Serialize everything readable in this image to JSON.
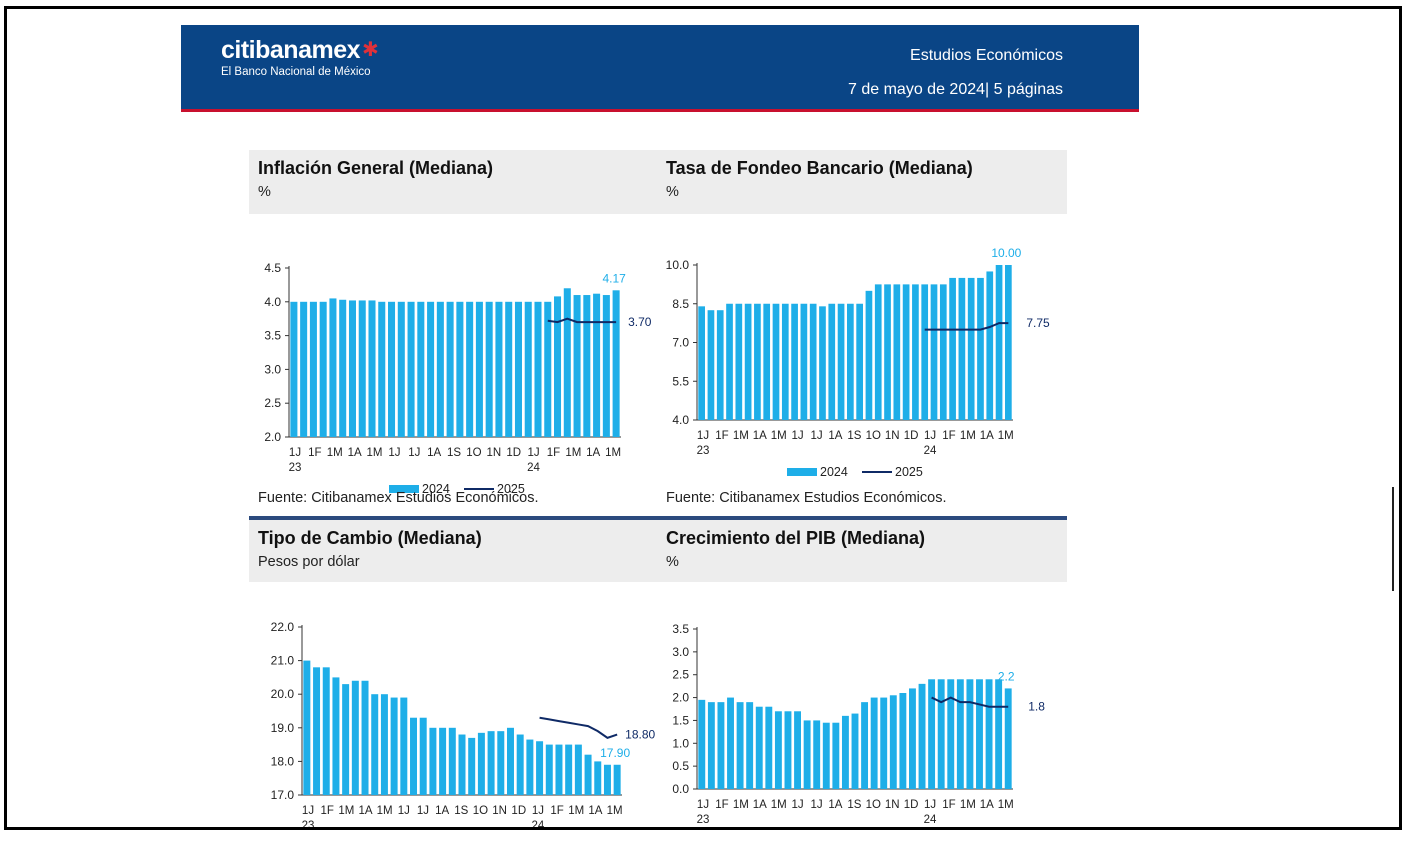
{
  "header": {
    "logo_text": "citibanamex",
    "logo_subtitle": "El Banco Nacional de México",
    "title": "Estudios Económicos",
    "date": "7 de mayo de 2024| 5 páginas"
  },
  "source_note": "Fuente: Citibanamex Estudios Económicos.",
  "colors": {
    "bar": "#1eaee8",
    "line": "#0f2a66",
    "header": "#0a4586",
    "accent": "#c8102e"
  },
  "chart_data": [
    {
      "id": "inflacion",
      "type": "bar",
      "title": "Inflación General (Mediana)",
      "unit": "%",
      "x_tick_labels": [
        "1J",
        "1F",
        "1M",
        "1A",
        "1M",
        "1J",
        "1J",
        "1A",
        "1S",
        "1O",
        "1N",
        "1D",
        "1J",
        "1F",
        "1M",
        "1A",
        "1M"
      ],
      "x_year_labels": [
        "23",
        "24"
      ],
      "ylim": [
        2.0,
        4.5
      ],
      "yticks": [
        "2.0",
        "2.5",
        "3.0",
        "3.5",
        "4.0",
        "4.5"
      ],
      "series": [
        {
          "name": "2024",
          "type": "bar",
          "values": [
            4.0,
            4.0,
            4.0,
            4.0,
            4.05,
            4.03,
            4.02,
            4.02,
            4.02,
            4.0,
            4.0,
            4.0,
            4.0,
            4.0,
            4.0,
            4.0,
            4.0,
            4.0,
            4.0,
            4.0,
            4.0,
            4.0,
            4.0,
            4.0,
            4.0,
            4.0,
            4.0,
            4.08,
            4.2,
            4.1,
            4.1,
            4.12,
            4.1,
            4.17
          ]
        },
        {
          "name": "2025",
          "type": "line",
          "start_index": 26,
          "values": [
            3.72,
            3.7,
            3.75,
            3.7,
            3.7,
            3.7,
            3.7,
            3.7
          ]
        }
      ],
      "annotations": {
        "bar_last": "4.17",
        "line_last": "3.70"
      }
    },
    {
      "id": "fondeo",
      "type": "bar",
      "title": "Tasa de Fondeo Bancario (Mediana)",
      "unit": "%",
      "x_tick_labels": [
        "1J",
        "1F",
        "1M",
        "1A",
        "1M",
        "1J",
        "1J",
        "1A",
        "1S",
        "1O",
        "1N",
        "1D",
        "1J",
        "1F",
        "1M",
        "1A",
        "1M"
      ],
      "x_year_labels": [
        "23",
        "24"
      ],
      "ylim": [
        4.0,
        10.0
      ],
      "yticks": [
        "4.0",
        "5.5",
        "7.0",
        "8.5",
        "10.0"
      ],
      "series": [
        {
          "name": "2024",
          "type": "bar",
          "values": [
            8.4,
            8.25,
            8.25,
            8.5,
            8.5,
            8.5,
            8.5,
            8.5,
            8.5,
            8.5,
            8.5,
            8.5,
            8.5,
            8.4,
            8.5,
            8.5,
            8.5,
            8.5,
            9.0,
            9.25,
            9.25,
            9.25,
            9.25,
            9.25,
            9.25,
            9.25,
            9.25,
            9.5,
            9.5,
            9.5,
            9.5,
            9.75,
            10.0,
            10.0
          ]
        },
        {
          "name": "2025",
          "type": "line",
          "start_index": 24,
          "values": [
            7.5,
            7.5,
            7.5,
            7.5,
            7.5,
            7.5,
            7.5,
            7.6,
            7.75,
            7.75
          ]
        }
      ],
      "annotations": {
        "bar_last": "10.00",
        "line_last": "7.75"
      }
    },
    {
      "id": "cambio",
      "type": "bar",
      "title": "Tipo de Cambio (Mediana)",
      "unit": "Pesos por dólar",
      "x_tick_labels": [
        "1J",
        "1F",
        "1M",
        "1A",
        "1M",
        "1J",
        "1J",
        "1A",
        "1S",
        "1O",
        "1N",
        "1D",
        "1J",
        "1F",
        "1M",
        "1A",
        "1M"
      ],
      "x_year_labels": [
        "23",
        "24"
      ],
      "ylim": [
        17.0,
        22.0
      ],
      "yticks": [
        "17.0",
        "18.0",
        "19.0",
        "20.0",
        "21.0",
        "22.0"
      ],
      "series": [
        {
          "name": "2024",
          "type": "bar",
          "values": [
            21.0,
            20.8,
            20.8,
            20.5,
            20.3,
            20.4,
            20.4,
            20.0,
            20.0,
            19.9,
            19.9,
            19.3,
            19.3,
            19.0,
            19.0,
            19.0,
            18.8,
            18.7,
            18.85,
            18.9,
            18.9,
            19.0,
            18.8,
            18.65,
            18.6,
            18.5,
            18.5,
            18.5,
            18.5,
            18.2,
            18.0,
            17.9,
            17.9
          ]
        },
        {
          "name": "2025",
          "type": "line",
          "start_index": 24,
          "values": [
            19.3,
            19.25,
            19.2,
            19.15,
            19.1,
            19.05,
            18.9,
            18.7,
            18.8
          ]
        }
      ],
      "annotations": {
        "bar_last": "17.90",
        "line_last": "18.80"
      }
    },
    {
      "id": "pib",
      "type": "bar",
      "title": "Crecimiento del PIB (Mediana)",
      "unit": "%",
      "x_tick_labels": [
        "1J",
        "1F",
        "1M",
        "1A",
        "1M",
        "1J",
        "1J",
        "1A",
        "1S",
        "1O",
        "1N",
        "1D",
        "1J",
        "1F",
        "1M",
        "1A",
        "1M"
      ],
      "x_year_labels": [
        "23",
        "24"
      ],
      "ylim": [
        0.0,
        3.5
      ],
      "yticks": [
        "0.0",
        "0.5",
        "1.0",
        "1.5",
        "2.0",
        "2.5",
        "3.0",
        "3.5"
      ],
      "series": [
        {
          "name": "2024",
          "type": "bar",
          "values": [
            1.95,
            1.9,
            1.9,
            2.0,
            1.9,
            1.9,
            1.8,
            1.8,
            1.7,
            1.7,
            1.7,
            1.5,
            1.5,
            1.45,
            1.45,
            1.6,
            1.65,
            1.9,
            2.0,
            2.0,
            2.05,
            2.1,
            2.2,
            2.3,
            2.4,
            2.4,
            2.4,
            2.4,
            2.4,
            2.4,
            2.4,
            2.4,
            2.2
          ]
        },
        {
          "name": "2025",
          "type": "line",
          "start_index": 24,
          "values": [
            2.0,
            1.9,
            2.0,
            1.9,
            1.9,
            1.85,
            1.8,
            1.8,
            1.8
          ]
        }
      ],
      "annotations": {
        "bar_last": "2.2",
        "line_last": "1.8"
      }
    }
  ]
}
